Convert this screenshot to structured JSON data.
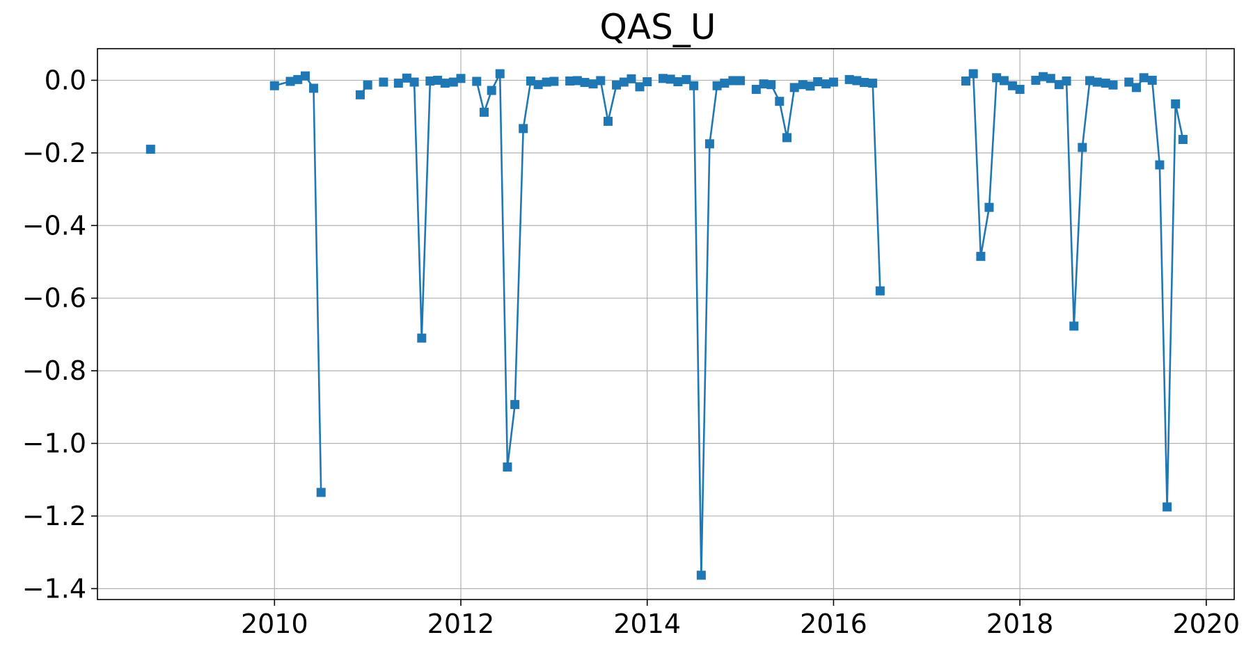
{
  "chart_data": {
    "type": "line",
    "title": "QAS_U",
    "xlabel": "",
    "ylabel": "",
    "xlim": [
      2008.1,
      2020.3
    ],
    "ylim": [
      -1.43,
      0.087
    ],
    "x_ticks": [
      2010,
      2012,
      2014,
      2016,
      2018,
      2020
    ],
    "x_tick_labels": [
      "2010",
      "2012",
      "2014",
      "2016",
      "2018",
      "2020"
    ],
    "y_ticks": [
      0.0,
      -0.2,
      -0.4,
      -0.6,
      -0.8,
      -1.0,
      -1.2,
      -1.4
    ],
    "y_tick_labels": [
      "0.0",
      "−0.2",
      "−0.4",
      "−0.6",
      "−0.8",
      "−1.0",
      "−1.2",
      "−1.4"
    ],
    "grid": true,
    "marker": "square",
    "color": "#1f77b4",
    "series": [
      {
        "segments": [
          [
            [
              2008.67,
              -0.19
            ]
          ],
          [
            [
              2010.0,
              -0.015
            ],
            [
              2010.17,
              -0.003
            ],
            [
              2010.25,
              0.002
            ],
            [
              2010.33,
              0.012
            ],
            [
              2010.42,
              -0.022
            ],
            [
              2010.5,
              -1.135
            ]
          ],
          [
            [
              2010.92,
              -0.04
            ],
            [
              2011.0,
              -0.013
            ]
          ],
          [
            [
              2011.17,
              -0.005
            ]
          ],
          [
            [
              2011.33,
              -0.008
            ],
            [
              2011.42,
              0.006
            ],
            [
              2011.5,
              -0.005
            ],
            [
              2011.58,
              -0.71
            ],
            [
              2011.67,
              -0.002
            ],
            [
              2011.75,
              0.0
            ],
            [
              2011.83,
              -0.008
            ],
            [
              2011.92,
              -0.005
            ],
            [
              2012.0,
              0.005
            ]
          ],
          [
            [
              2012.17,
              -0.003
            ],
            [
              2012.25,
              -0.088
            ],
            [
              2012.33,
              -0.028
            ],
            [
              2012.42,
              0.018
            ],
            [
              2012.5,
              -1.065
            ],
            [
              2012.58,
              -0.893
            ],
            [
              2012.67,
              -0.133
            ],
            [
              2012.75,
              -0.002
            ],
            [
              2012.83,
              -0.012
            ],
            [
              2012.92,
              -0.005
            ],
            [
              2013.0,
              -0.003
            ]
          ],
          [
            [
              2013.17,
              -0.002
            ],
            [
              2013.25,
              -0.001
            ],
            [
              2013.33,
              -0.006
            ],
            [
              2013.42,
              -0.01
            ],
            [
              2013.5,
              -0.001
            ],
            [
              2013.58,
              -0.113
            ],
            [
              2013.67,
              -0.013
            ],
            [
              2013.75,
              -0.005
            ],
            [
              2013.83,
              0.004
            ],
            [
              2013.92,
              -0.018
            ],
            [
              2014.0,
              -0.004
            ]
          ],
          [
            [
              2014.17,
              0.005
            ],
            [
              2014.25,
              0.003
            ],
            [
              2014.33,
              -0.004
            ],
            [
              2014.42,
              0.002
            ],
            [
              2014.5,
              -0.015
            ],
            [
              2014.58,
              -1.363
            ],
            [
              2014.67,
              -0.175
            ],
            [
              2014.75,
              -0.015
            ],
            [
              2014.83,
              -0.008
            ],
            [
              2014.92,
              -0.001
            ],
            [
              2015.0,
              -0.001
            ]
          ],
          [
            [
              2015.17,
              -0.025
            ],
            [
              2015.25,
              -0.01
            ],
            [
              2015.33,
              -0.012
            ],
            [
              2015.42,
              -0.058
            ],
            [
              2015.5,
              -0.158
            ],
            [
              2015.58,
              -0.02
            ],
            [
              2015.67,
              -0.012
            ],
            [
              2015.75,
              -0.016
            ],
            [
              2015.83,
              -0.004
            ],
            [
              2015.92,
              -0.01
            ],
            [
              2016.0,
              -0.005
            ]
          ],
          [
            [
              2016.17,
              0.002
            ],
            [
              2016.25,
              -0.001
            ],
            [
              2016.33,
              -0.006
            ],
            [
              2016.42,
              -0.008
            ],
            [
              2016.5,
              -0.58
            ]
          ],
          [
            [
              2017.42,
              -0.002
            ],
            [
              2017.5,
              0.018
            ],
            [
              2017.58,
              -0.485
            ],
            [
              2017.67,
              -0.35
            ],
            [
              2017.75,
              0.007
            ],
            [
              2017.83,
              -0.001
            ],
            [
              2017.92,
              -0.015
            ],
            [
              2018.0,
              -0.025
            ]
          ],
          [
            [
              2018.17,
              0.0
            ],
            [
              2018.25,
              0.01
            ],
            [
              2018.33,
              0.005
            ],
            [
              2018.42,
              -0.012
            ],
            [
              2018.5,
              -0.002
            ],
            [
              2018.58,
              -0.677
            ],
            [
              2018.67,
              -0.185
            ],
            [
              2018.75,
              -0.001
            ],
            [
              2018.83,
              -0.005
            ],
            [
              2018.92,
              -0.008
            ],
            [
              2019.0,
              -0.013
            ]
          ],
          [
            [
              2019.17,
              -0.005
            ],
            [
              2019.25,
              -0.02
            ],
            [
              2019.33,
              0.007
            ],
            [
              2019.42,
              0.0
            ],
            [
              2019.5,
              -0.233
            ],
            [
              2019.58,
              -1.175
            ],
            [
              2019.67,
              -0.065
            ],
            [
              2019.75,
              -0.163
            ]
          ]
        ]
      }
    ]
  }
}
